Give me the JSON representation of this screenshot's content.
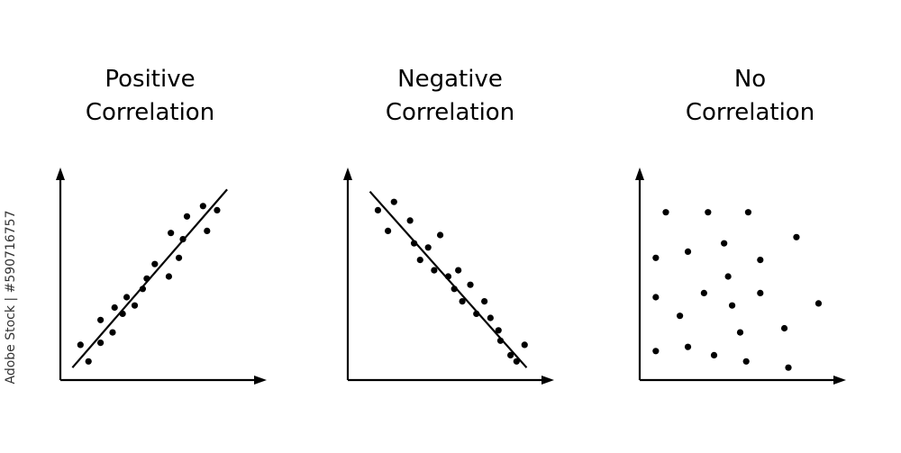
{
  "watermark_side_text": "Adobe Stock | #590716757",
  "chart_data": [
    {
      "type": "scatter",
      "title_line1": "Positive",
      "title_line2": "Correlation",
      "xlim": [
        0,
        10
      ],
      "ylim": [
        0,
        10
      ],
      "grid": false,
      "axis_tick_labels": false,
      "trendline": {
        "x": [
          0.6,
          8.3
        ],
        "y": [
          0.6,
          9.2
        ]
      },
      "points": [
        {
          "x": 1.0,
          "y": 1.7
        },
        {
          "x": 1.4,
          "y": 0.9
        },
        {
          "x": 2.0,
          "y": 1.8
        },
        {
          "x": 2.0,
          "y": 2.9
        },
        {
          "x": 2.6,
          "y": 2.3
        },
        {
          "x": 2.7,
          "y": 3.5
        },
        {
          "x": 3.1,
          "y": 3.2
        },
        {
          "x": 3.3,
          "y": 4.0
        },
        {
          "x": 3.7,
          "y": 3.6
        },
        {
          "x": 4.1,
          "y": 4.4
        },
        {
          "x": 4.3,
          "y": 4.9
        },
        {
          "x": 4.7,
          "y": 5.6
        },
        {
          "x": 5.4,
          "y": 5.0
        },
        {
          "x": 5.5,
          "y": 7.1
        },
        {
          "x": 5.9,
          "y": 5.9
        },
        {
          "x": 6.1,
          "y": 6.8
        },
        {
          "x": 6.3,
          "y": 7.9
        },
        {
          "x": 7.1,
          "y": 8.4
        },
        {
          "x": 7.3,
          "y": 7.2
        },
        {
          "x": 7.8,
          "y": 8.2
        }
      ]
    },
    {
      "type": "scatter",
      "title_line1": "Negative",
      "title_line2": "Correlation",
      "xlim": [
        0,
        10
      ],
      "ylim": [
        0,
        10
      ],
      "grid": false,
      "axis_tick_labels": false,
      "trendline": {
        "x": [
          1.1,
          8.9
        ],
        "y": [
          9.1,
          0.6
        ]
      },
      "points": [
        {
          "x": 1.5,
          "y": 8.2
        },
        {
          "x": 2.0,
          "y": 7.2
        },
        {
          "x": 2.3,
          "y": 8.6
        },
        {
          "x": 3.1,
          "y": 7.7
        },
        {
          "x": 3.3,
          "y": 6.6
        },
        {
          "x": 3.6,
          "y": 5.8
        },
        {
          "x": 4.0,
          "y": 6.4
        },
        {
          "x": 4.3,
          "y": 5.3
        },
        {
          "x": 4.6,
          "y": 7.0
        },
        {
          "x": 5.0,
          "y": 5.0
        },
        {
          "x": 5.3,
          "y": 4.4
        },
        {
          "x": 5.5,
          "y": 5.3
        },
        {
          "x": 5.7,
          "y": 3.8
        },
        {
          "x": 6.1,
          "y": 4.6
        },
        {
          "x": 6.4,
          "y": 3.2
        },
        {
          "x": 6.8,
          "y": 3.8
        },
        {
          "x": 7.1,
          "y": 3.0
        },
        {
          "x": 7.5,
          "y": 2.4
        },
        {
          "x": 7.6,
          "y": 1.9
        },
        {
          "x": 8.1,
          "y": 1.2
        },
        {
          "x": 8.4,
          "y": 0.9
        },
        {
          "x": 8.8,
          "y": 1.7
        }
      ]
    },
    {
      "type": "scatter",
      "title_line1": "No",
      "title_line2": "Correlation",
      "xlim": [
        0,
        10
      ],
      "ylim": [
        0,
        10
      ],
      "grid": false,
      "axis_tick_labels": false,
      "trendline": null,
      "points": [
        {
          "x": 0.8,
          "y": 1.4
        },
        {
          "x": 0.8,
          "y": 4.0
        },
        {
          "x": 0.8,
          "y": 5.9
        },
        {
          "x": 1.3,
          "y": 8.1
        },
        {
          "x": 2.0,
          "y": 3.1
        },
        {
          "x": 2.4,
          "y": 1.6
        },
        {
          "x": 2.4,
          "y": 6.2
        },
        {
          "x": 3.2,
          "y": 4.2
        },
        {
          "x": 3.4,
          "y": 8.1
        },
        {
          "x": 3.7,
          "y": 1.2
        },
        {
          "x": 4.2,
          "y": 6.6
        },
        {
          "x": 4.4,
          "y": 5.0
        },
        {
          "x": 4.6,
          "y": 3.6
        },
        {
          "x": 5.0,
          "y": 2.3
        },
        {
          "x": 5.3,
          "y": 0.9
        },
        {
          "x": 5.4,
          "y": 8.1
        },
        {
          "x": 6.0,
          "y": 4.2
        },
        {
          "x": 6.0,
          "y": 5.8
        },
        {
          "x": 7.2,
          "y": 2.5
        },
        {
          "x": 7.4,
          "y": 0.6
        },
        {
          "x": 7.8,
          "y": 6.9
        },
        {
          "x": 8.9,
          "y": 3.7
        }
      ]
    }
  ]
}
